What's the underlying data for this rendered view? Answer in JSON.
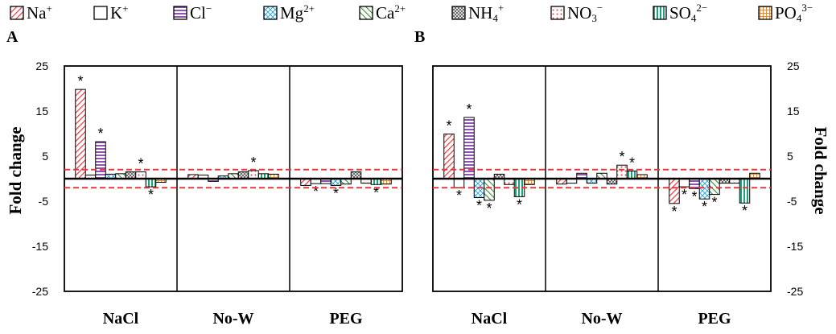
{
  "chart_data": {
    "type": "bar",
    "ylabel": "Fold change",
    "ylim": [
      -25,
      25
    ],
    "yticks": [
      "25",
      "15",
      "5",
      "-5",
      "-15",
      "-25"
    ],
    "threshold_lines": [
      2,
      -2
    ],
    "significance_mark": "*",
    "categories": [
      "NaCl",
      "No-W",
      "PEG"
    ],
    "legend": [
      {
        "base": "Na",
        "sup": "+",
        "sub": "",
        "pattern": "red-diag",
        "color": "#e8383d"
      },
      {
        "base": "K",
        "sup": "+",
        "sub": "",
        "pattern": "white",
        "color": "#000000"
      },
      {
        "base": "Cl",
        "sup": "−",
        "sub": "",
        "pattern": "purple-hstripe",
        "color": "#8e55b0"
      },
      {
        "base": "Mg",
        "sup": "2+",
        "sub": "",
        "pattern": "cyan-cross",
        "color": "#3aa7d8"
      },
      {
        "base": "Ca",
        "sup": "2+",
        "sub": "",
        "pattern": "green-diag",
        "color": "#3a8a3a"
      },
      {
        "base": "NH",
        "sup": "+",
        "sub": "4",
        "pattern": "grey-cross",
        "color": "#555555"
      },
      {
        "base": "NO",
        "sup": "−",
        "sub": "3",
        "pattern": "red-dots",
        "color": "#e8383d"
      },
      {
        "base": "SO",
        "sup": "2−",
        "sub": "4",
        "pattern": "green-vstripe",
        "color": "#1aa37a"
      },
      {
        "base": "PO",
        "sup": "3−",
        "sub": "4",
        "pattern": "orange-grid",
        "color": "#e8883a"
      }
    ],
    "panels": [
      {
        "label": "A",
        "values": [
          [
            19.8,
            0.8,
            8.2,
            1.0,
            1.1,
            1.5,
            1.5,
            -1.8,
            -0.8
          ],
          [
            0.9,
            0.8,
            -0.6,
            0.6,
            1.1,
            1.5,
            1.8,
            1.1,
            1.0
          ],
          [
            -1.5,
            -1.1,
            -1.1,
            -1.5,
            -1.2,
            1.5,
            -1.0,
            -1.3,
            -1.2
          ]
        ],
        "significant": [
          [
            true,
            false,
            true,
            false,
            false,
            false,
            true,
            true,
            false
          ],
          [
            false,
            false,
            false,
            false,
            false,
            false,
            true,
            false,
            false
          ],
          [
            false,
            true,
            false,
            true,
            false,
            false,
            false,
            true,
            false
          ]
        ]
      },
      {
        "label": "B",
        "values": [
          [
            9.9,
            -2.0,
            13.6,
            -4.2,
            -4.8,
            1.0,
            -1.3,
            -4.0,
            -1.3
          ],
          [
            -1.2,
            -1.0,
            1.2,
            -1.0,
            1.2,
            -1.2,
            3.0,
            1.7,
            0.9
          ],
          [
            -5.5,
            -1.8,
            -2.2,
            -4.5,
            -3.5,
            -1.0,
            -1.0,
            -5.4,
            1.2
          ]
        ],
        "significant": [
          [
            true,
            true,
            true,
            true,
            true,
            false,
            false,
            true,
            false
          ],
          [
            false,
            false,
            false,
            false,
            false,
            false,
            true,
            true,
            false
          ],
          [
            true,
            true,
            true,
            true,
            true,
            false,
            false,
            true,
            false
          ]
        ]
      }
    ]
  }
}
